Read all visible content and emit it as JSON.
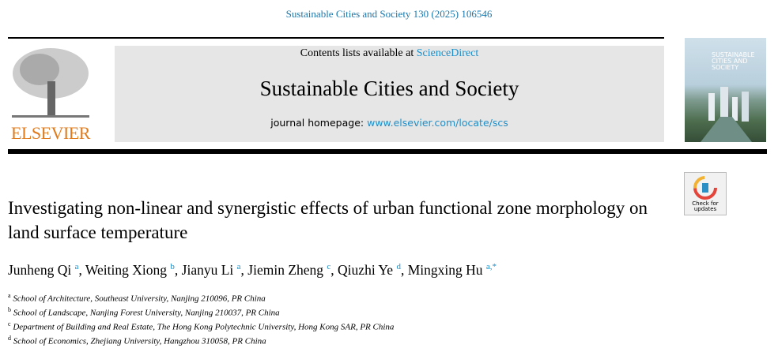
{
  "citation": "Sustainable Cities and Society 130 (2025) 106546",
  "header": {
    "publisher_logo": "ELSEVIER",
    "contents_prefix": "Contents lists available at ",
    "contents_link": "ScienceDirect",
    "journal_title": "Sustainable Cities and Society",
    "homepage_prefix": "journal homepage: ",
    "homepage_link": "www.elsevier.com/locate/scs",
    "cover_title": "SUSTAINABLE CITIES AND SOCIETY",
    "check_updates": "Check for updates"
  },
  "article": {
    "title": "Investigating non-linear and synergistic effects of urban functional zone morphology on land surface temperature",
    "authors": [
      {
        "name": "Junheng Qi",
        "aff": "a"
      },
      {
        "name": "Weiting Xiong",
        "aff": "b"
      },
      {
        "name": "Jianyu Li",
        "aff": "a"
      },
      {
        "name": "Jiemin Zheng",
        "aff": "c"
      },
      {
        "name": "Qiuzhi Ye",
        "aff": "d"
      },
      {
        "name": "Mingxing Hu",
        "aff": "a,*"
      }
    ],
    "affiliations": [
      {
        "key": "a",
        "text": "School of Architecture, Southeast University, Nanjing 210096, PR China"
      },
      {
        "key": "b",
        "text": "School of Landscape, Nanjing Forest University, Nanjing 210037, PR China"
      },
      {
        "key": "c",
        "text": "Department of Building and Real Estate, The Hong Kong Polytechnic University, Hong Kong SAR, PR China"
      },
      {
        "key": "d",
        "text": "School of Economics, Zhejiang University, Hangzhou 310058, PR China"
      }
    ]
  },
  "colors": {
    "link": "#1f8fc9",
    "elsevier_orange": "#e07b1c",
    "header_box": "#e6e6e6"
  }
}
